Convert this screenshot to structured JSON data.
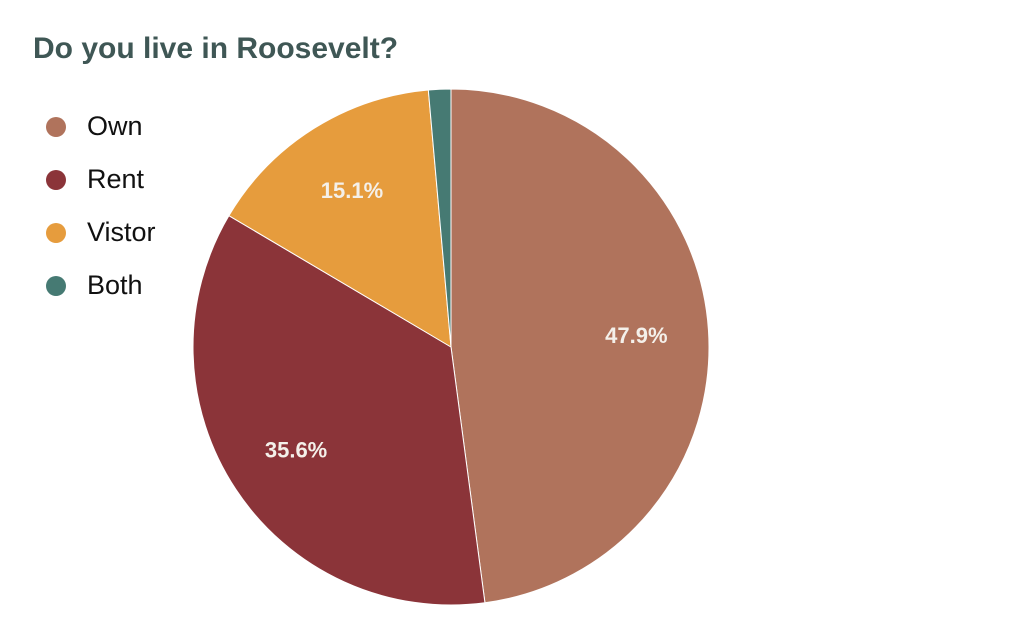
{
  "chart_data": {
    "type": "pie",
    "title": "Do you live in Roosevelt?",
    "start": "top",
    "direction": "clockwise",
    "legend_position": "left",
    "slices": [
      {
        "label": "Own",
        "value": 47.9,
        "display": "47.9%",
        "color": "#b0735c"
      },
      {
        "label": "Rent",
        "value": 35.6,
        "display": "35.6%",
        "color": "#8b3439"
      },
      {
        "label": "Vistor",
        "value": 15.1,
        "display": "15.1%",
        "color": "#e69c3d"
      },
      {
        "label": "Both",
        "value": 1.4,
        "display": "",
        "color": "#467a73"
      }
    ]
  }
}
